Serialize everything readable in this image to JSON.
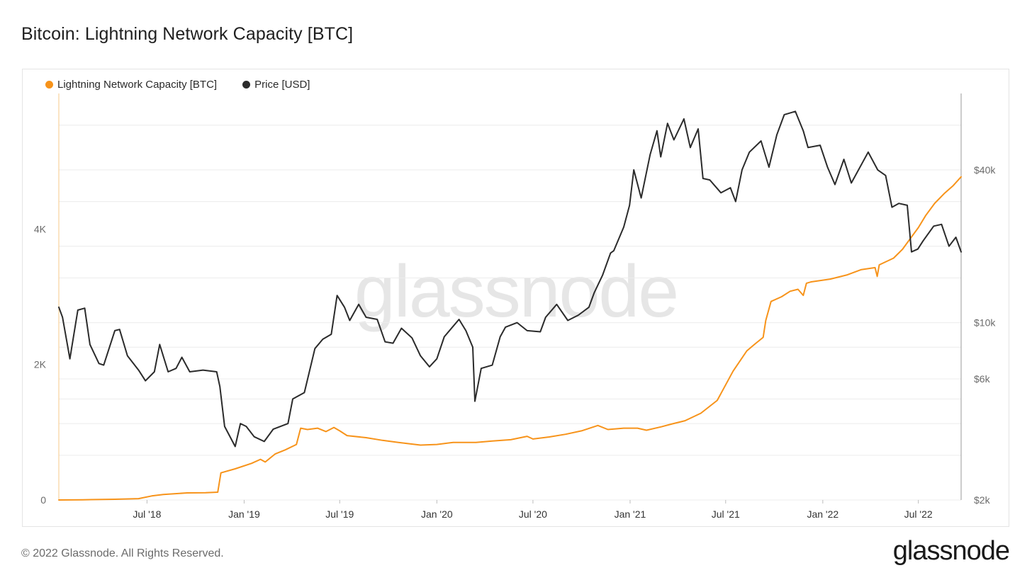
{
  "page": {
    "title": "Bitcoin: Lightning Network Capacity [BTC]",
    "footer": "© 2022 Glassnode. All Rights Reserved.",
    "logo": "glassnode",
    "watermark": "glassnode"
  },
  "legend": {
    "capacity_label": "Lightning Network Capacity [BTC]",
    "price_label": "Price [USD]"
  },
  "colors": {
    "capacity": "#f7931a",
    "price": "#2b2b2b",
    "grid": "#ececec",
    "axis_text": "#6b6b6b",
    "watermark": "#e6e6e6"
  },
  "chart_data": {
    "type": "line",
    "title": "Bitcoin: Lightning Network Capacity [BTC]",
    "x_ticks": [
      "Jul '18",
      "Jan '19",
      "Jul '19",
      "Jan '20",
      "Jul '20",
      "Jan '21",
      "Jul '21",
      "Jan '22",
      "Jul '22"
    ],
    "x_range": [
      "2018-01-15",
      "2022-09-20"
    ],
    "y_left": {
      "label": "",
      "ticks": [
        "0",
        "2K",
        "4K"
      ],
      "tick_values": [
        0,
        2000,
        4000
      ],
      "ylim": [
        0,
        6000
      ]
    },
    "y_right": {
      "label": "",
      "scale": "log",
      "ticks": [
        "$2k",
        "$6k",
        "$10k",
        "$40k"
      ],
      "tick_values": [
        2000,
        6000,
        10000,
        40000
      ],
      "ylim": [
        2000,
        80000
      ]
    },
    "series": [
      {
        "name": "Lightning Network Capacity [BTC]",
        "axis": "left",
        "points": [
          [
            "2018-01-15",
            0
          ],
          [
            "2018-03-01",
            3
          ],
          [
            "2018-05-01",
            10
          ],
          [
            "2018-06-15",
            20
          ],
          [
            "2018-07-10",
            60
          ],
          [
            "2018-08-01",
            80
          ],
          [
            "2018-09-15",
            105
          ],
          [
            "2018-10-20",
            108
          ],
          [
            "2018-11-12",
            115
          ],
          [
            "2018-11-18",
            400
          ],
          [
            "2018-12-15",
            460
          ],
          [
            "2019-01-15",
            540
          ],
          [
            "2019-02-01",
            600
          ],
          [
            "2019-02-10",
            560
          ],
          [
            "2019-03-01",
            680
          ],
          [
            "2019-03-20",
            740
          ],
          [
            "2019-04-10",
            820
          ],
          [
            "2019-04-18",
            1060
          ],
          [
            "2019-05-01",
            1040
          ],
          [
            "2019-05-20",
            1060
          ],
          [
            "2019-06-05",
            1010
          ],
          [
            "2019-06-20",
            1070
          ],
          [
            "2019-07-01",
            1020
          ],
          [
            "2019-07-15",
            950
          ],
          [
            "2019-08-20",
            920
          ],
          [
            "2019-09-20",
            880
          ],
          [
            "2019-10-20",
            850
          ],
          [
            "2019-12-01",
            810
          ],
          [
            "2020-01-01",
            820
          ],
          [
            "2020-02-01",
            850
          ],
          [
            "2020-03-15",
            850
          ],
          [
            "2020-04-15",
            870
          ],
          [
            "2020-05-20",
            890
          ],
          [
            "2020-06-20",
            940
          ],
          [
            "2020-07-01",
            900
          ],
          [
            "2020-08-01",
            930
          ],
          [
            "2020-09-01",
            970
          ],
          [
            "2020-10-01",
            1020
          ],
          [
            "2020-11-01",
            1100
          ],
          [
            "2020-11-20",
            1040
          ],
          [
            "2020-12-20",
            1060
          ],
          [
            "2021-01-15",
            1060
          ],
          [
            "2021-02-01",
            1030
          ],
          [
            "2021-03-01",
            1080
          ],
          [
            "2021-03-20",
            1120
          ],
          [
            "2021-04-15",
            1170
          ],
          [
            "2021-05-15",
            1280
          ],
          [
            "2021-06-15",
            1470
          ],
          [
            "2021-07-15",
            1900
          ],
          [
            "2021-08-10",
            2200
          ],
          [
            "2021-08-25",
            2300
          ],
          [
            "2021-09-10",
            2400
          ],
          [
            "2021-09-15",
            2650
          ],
          [
            "2021-09-25",
            2930
          ],
          [
            "2021-10-15",
            3000
          ],
          [
            "2021-10-31",
            3080
          ],
          [
            "2021-11-15",
            3110
          ],
          [
            "2021-11-25",
            3020
          ],
          [
            "2021-12-01",
            3200
          ],
          [
            "2021-12-10",
            3220
          ],
          [
            "2022-01-15",
            3260
          ],
          [
            "2022-02-15",
            3320
          ],
          [
            "2022-03-15",
            3400
          ],
          [
            "2022-04-10",
            3430
          ],
          [
            "2022-04-14",
            3300
          ],
          [
            "2022-04-18",
            3470
          ],
          [
            "2022-05-15",
            3570
          ],
          [
            "2022-06-01",
            3700
          ],
          [
            "2022-06-15",
            3850
          ],
          [
            "2022-07-01",
            4020
          ],
          [
            "2022-07-15",
            4200
          ],
          [
            "2022-08-01",
            4380
          ],
          [
            "2022-08-20",
            4530
          ],
          [
            "2022-09-05",
            4640
          ],
          [
            "2022-09-20",
            4770
          ]
        ]
      },
      {
        "name": "Price [USD]",
        "axis": "right",
        "points": [
          [
            "2018-01-15",
            11500
          ],
          [
            "2018-01-22",
            10500
          ],
          [
            "2018-02-05",
            7200
          ],
          [
            "2018-02-20",
            11200
          ],
          [
            "2018-03-05",
            11400
          ],
          [
            "2018-03-15",
            8200
          ],
          [
            "2018-04-01",
            6900
          ],
          [
            "2018-04-10",
            6800
          ],
          [
            "2018-05-01",
            9300
          ],
          [
            "2018-05-10",
            9400
          ],
          [
            "2018-05-25",
            7400
          ],
          [
            "2018-06-15",
            6500
          ],
          [
            "2018-06-28",
            5900
          ],
          [
            "2018-07-15",
            6400
          ],
          [
            "2018-07-25",
            8200
          ],
          [
            "2018-08-10",
            6400
          ],
          [
            "2018-08-25",
            6600
          ],
          [
            "2018-09-05",
            7300
          ],
          [
            "2018-09-20",
            6400
          ],
          [
            "2018-10-15",
            6500
          ],
          [
            "2018-11-10",
            6400
          ],
          [
            "2018-11-16",
            5600
          ],
          [
            "2018-11-25",
            3900
          ],
          [
            "2018-12-15",
            3250
          ],
          [
            "2018-12-25",
            4000
          ],
          [
            "2019-01-05",
            3900
          ],
          [
            "2019-01-20",
            3550
          ],
          [
            "2019-02-08",
            3400
          ],
          [
            "2019-02-25",
            3800
          ],
          [
            "2019-03-25",
            4000
          ],
          [
            "2019-04-03",
            5000
          ],
          [
            "2019-04-25",
            5300
          ],
          [
            "2019-05-15",
            7900
          ],
          [
            "2019-05-30",
            8600
          ],
          [
            "2019-06-15",
            9000
          ],
          [
            "2019-06-26",
            12800
          ],
          [
            "2019-07-10",
            11500
          ],
          [
            "2019-07-20",
            10200
          ],
          [
            "2019-08-06",
            11800
          ],
          [
            "2019-08-20",
            10500
          ],
          [
            "2019-09-10",
            10300
          ],
          [
            "2019-09-25",
            8400
          ],
          [
            "2019-10-10",
            8300
          ],
          [
            "2019-10-26",
            9500
          ],
          [
            "2019-11-15",
            8700
          ],
          [
            "2019-12-01",
            7400
          ],
          [
            "2019-12-18",
            6700
          ],
          [
            "2020-01-01",
            7200
          ],
          [
            "2020-01-15",
            8800
          ],
          [
            "2020-02-12",
            10300
          ],
          [
            "2020-02-25",
            9300
          ],
          [
            "2020-03-09",
            8000
          ],
          [
            "2020-03-13",
            4900
          ],
          [
            "2020-03-25",
            6600
          ],
          [
            "2020-04-15",
            6800
          ],
          [
            "2020-04-30",
            8800
          ],
          [
            "2020-05-10",
            9600
          ],
          [
            "2020-06-01",
            10000
          ],
          [
            "2020-06-20",
            9300
          ],
          [
            "2020-07-15",
            9200
          ],
          [
            "2020-07-25",
            10500
          ],
          [
            "2020-08-15",
            11800
          ],
          [
            "2020-09-05",
            10200
          ],
          [
            "2020-09-25",
            10700
          ],
          [
            "2020-10-15",
            11500
          ],
          [
            "2020-10-25",
            13100
          ],
          [
            "2020-11-10",
            15400
          ],
          [
            "2020-11-25",
            18800
          ],
          [
            "2020-12-01",
            19200
          ],
          [
            "2020-12-20",
            23800
          ],
          [
            "2020-12-31",
            29000
          ],
          [
            "2021-01-08",
            40000
          ],
          [
            "2021-01-22",
            31000
          ],
          [
            "2021-02-08",
            46000
          ],
          [
            "2021-02-21",
            57000
          ],
          [
            "2021-02-28",
            45000
          ],
          [
            "2021-03-13",
            61000
          ],
          [
            "2021-03-25",
            52500
          ],
          [
            "2021-04-13",
            63500
          ],
          [
            "2021-04-25",
            49000
          ],
          [
            "2021-05-10",
            58000
          ],
          [
            "2021-05-19",
            37000
          ],
          [
            "2021-06-01",
            36500
          ],
          [
            "2021-06-22",
            32500
          ],
          [
            "2021-07-10",
            34000
          ],
          [
            "2021-07-20",
            30000
          ],
          [
            "2021-08-01",
            40000
          ],
          [
            "2021-08-15",
            47000
          ],
          [
            "2021-09-06",
            52000
          ],
          [
            "2021-09-21",
            41000
          ],
          [
            "2021-10-06",
            55000
          ],
          [
            "2021-10-20",
            66000
          ],
          [
            "2021-11-10",
            68000
          ],
          [
            "2021-11-25",
            57000
          ],
          [
            "2021-12-04",
            49000
          ],
          [
            "2021-12-27",
            50000
          ],
          [
            "2022-01-10",
            41000
          ],
          [
            "2022-01-24",
            35000
          ],
          [
            "2022-02-10",
            44000
          ],
          [
            "2022-02-24",
            35500
          ],
          [
            "2022-03-28",
            47000
          ],
          [
            "2022-04-15",
            40000
          ],
          [
            "2022-04-30",
            38000
          ],
          [
            "2022-05-12",
            28500
          ],
          [
            "2022-05-25",
            29500
          ],
          [
            "2022-06-10",
            29000
          ],
          [
            "2022-06-18",
            19000
          ],
          [
            "2022-06-30",
            19500
          ],
          [
            "2022-07-10",
            21000
          ],
          [
            "2022-07-30",
            24000
          ],
          [
            "2022-08-14",
            24400
          ],
          [
            "2022-08-28",
            20000
          ],
          [
            "2022-09-10",
            21700
          ],
          [
            "2022-09-20",
            19000
          ]
        ]
      }
    ]
  }
}
